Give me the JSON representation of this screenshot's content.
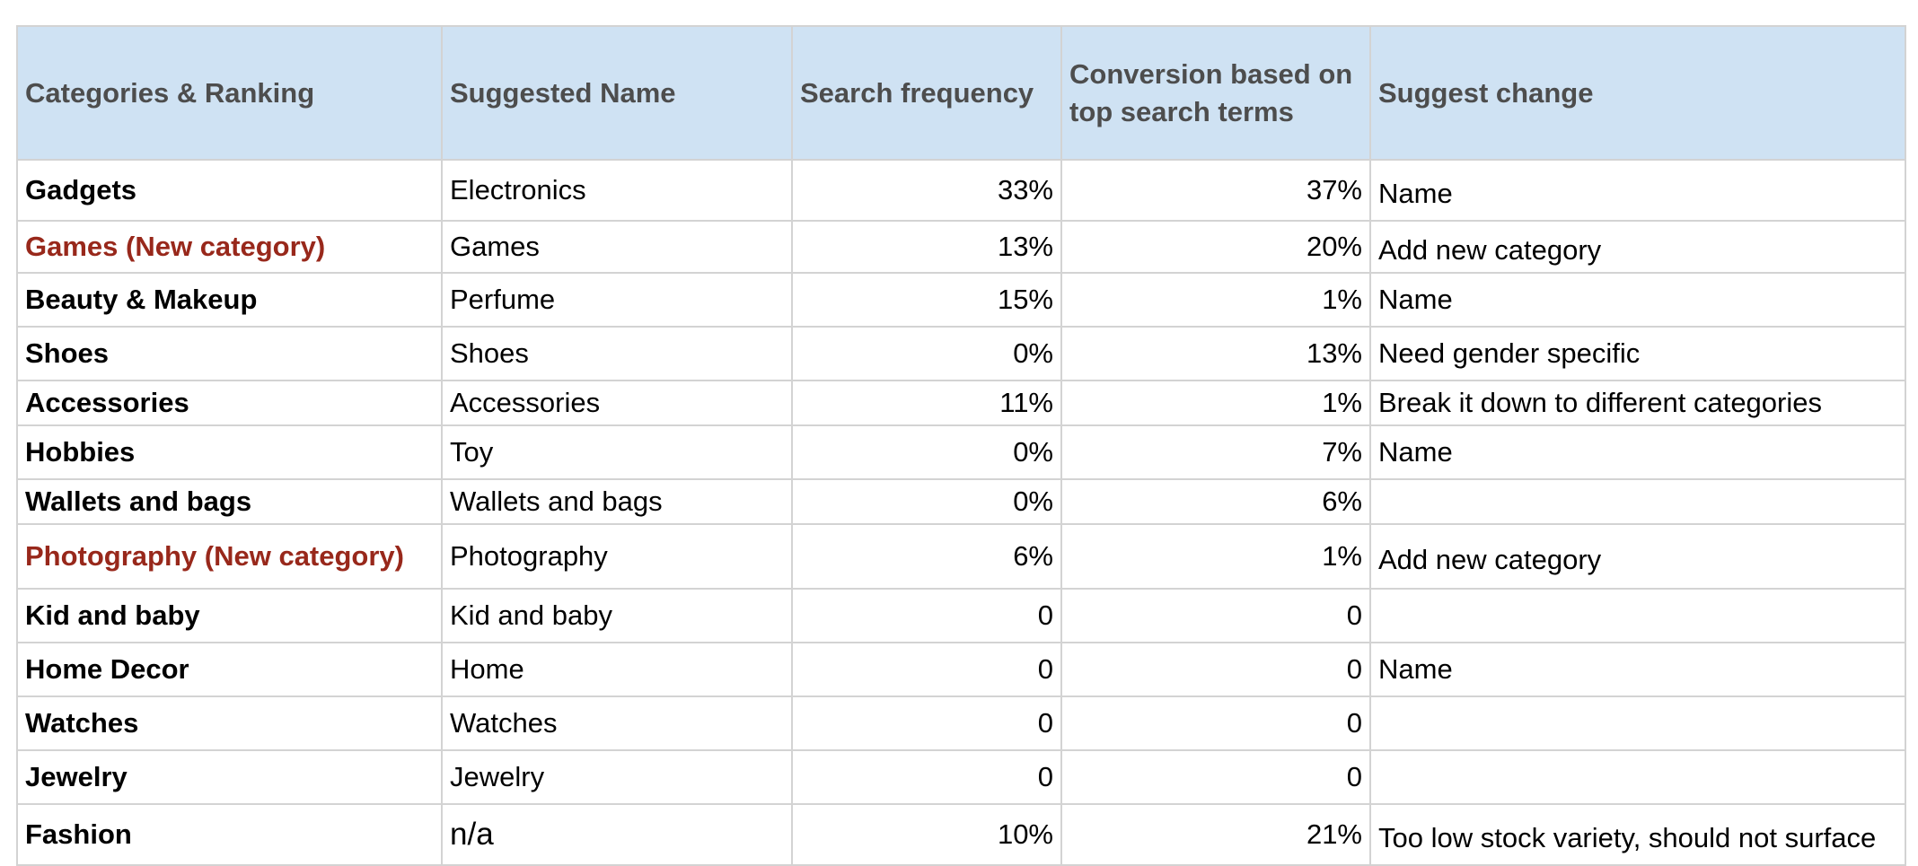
{
  "headers": {
    "category": "Categories & Ranking",
    "suggested_name": "Suggested Name",
    "search_frequency": "Search frequency",
    "conversion": "Conversion based on top search terms",
    "suggest_change": "Suggest change"
  },
  "rows": [
    {
      "category": "Gadgets",
      "new": false,
      "suggested": "Electronics",
      "search": "33%",
      "conversion": "37%",
      "change": "Name"
    },
    {
      "category": "Games (New category)",
      "new": true,
      "suggested": "Games",
      "search": "13%",
      "conversion": "20%",
      "change": "Add new category"
    },
    {
      "category": "Beauty & Makeup",
      "new": false,
      "suggested": "Perfume",
      "search": "15%",
      "conversion": "1%",
      "change": "Name"
    },
    {
      "category": "Shoes",
      "new": false,
      "suggested": "Shoes",
      "search": "0%",
      "conversion": "13%",
      "change": "Need gender specific"
    },
    {
      "category": "Accessories",
      "new": false,
      "suggested": "Accessories",
      "search": "11%",
      "conversion": "1%",
      "change": "Break it down to different categories"
    },
    {
      "category": "Hobbies",
      "new": false,
      "suggested": "Toy",
      "search": "0%",
      "conversion": "7%",
      "change": "Name"
    },
    {
      "category": "Wallets and bags",
      "new": false,
      "suggested": "Wallets and bags",
      "search": "0%",
      "conversion": "6%",
      "change": ""
    },
    {
      "category": "Photography (New category)",
      "new": true,
      "suggested": "Photography",
      "search": "6%",
      "conversion": "1%",
      "change": "Add new category"
    },
    {
      "category": "Kid and baby",
      "new": false,
      "suggested": "Kid and baby",
      "search": "0",
      "conversion": "0",
      "change": ""
    },
    {
      "category": "Home Decor",
      "new": false,
      "suggested": "Home",
      "search": "0",
      "conversion": "0",
      "change": "Name"
    },
    {
      "category": "Watches",
      "new": false,
      "suggested": "Watches",
      "search": "0",
      "conversion": "0",
      "change": ""
    },
    {
      "category": "Jewelry",
      "new": false,
      "suggested": "Jewelry",
      "search": "0",
      "conversion": "0",
      "change": ""
    },
    {
      "category": "Fashion",
      "new": false,
      "suggested": "n/a",
      "search": "10%",
      "conversion": "21%",
      "change": "Too low stock variety, should not surface"
    }
  ],
  "colors": {
    "header_background": "#cfe2f3",
    "header_text": "#4d4d4d",
    "new_category_text": "#98281b",
    "grid_lines": "#d3d3d3"
  }
}
